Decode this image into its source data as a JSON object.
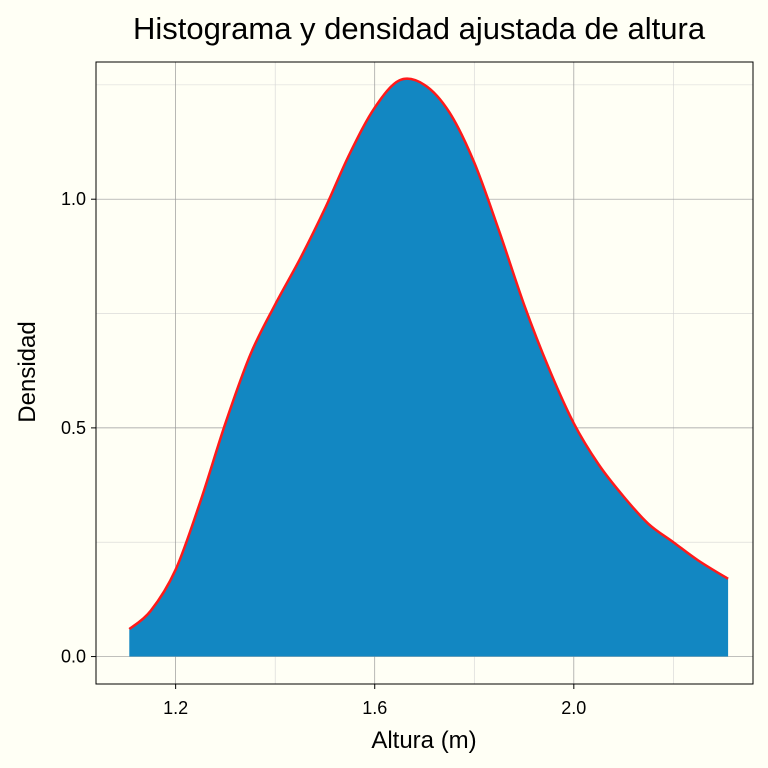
{
  "chart_data": {
    "type": "area",
    "title": "Histograma y densidad ajustada de altura",
    "xlabel": "Altura (m)",
    "ylabel": "Densidad",
    "xlim": [
      1.04,
      2.36
    ],
    "ylim": [
      -0.06,
      1.3
    ],
    "x_ticks": [
      1.2,
      1.6,
      2.0
    ],
    "x_tick_labels": [
      "1.2",
      "1.6",
      "2.0"
    ],
    "y_ticks": [
      0.0,
      0.5,
      1.0
    ],
    "y_tick_labels": [
      "0.0",
      "0.5",
      "1.0"
    ],
    "grid": true,
    "fill_color": "#1287c2",
    "line_color": "#ff1a1a",
    "x": [
      1.107,
      1.15,
      1.2,
      1.25,
      1.3,
      1.35,
      1.4,
      1.45,
      1.5,
      1.55,
      1.6,
      1.65,
      1.7,
      1.75,
      1.8,
      1.85,
      1.9,
      1.95,
      2.0,
      2.05,
      2.1,
      2.15,
      2.2,
      2.25,
      2.31
    ],
    "y": [
      0.06,
      0.1,
      0.19,
      0.34,
      0.51,
      0.66,
      0.77,
      0.87,
      0.98,
      1.1,
      1.2,
      1.26,
      1.25,
      1.19,
      1.08,
      0.93,
      0.77,
      0.63,
      0.51,
      0.42,
      0.35,
      0.29,
      0.25,
      0.21,
      0.17
    ]
  }
}
